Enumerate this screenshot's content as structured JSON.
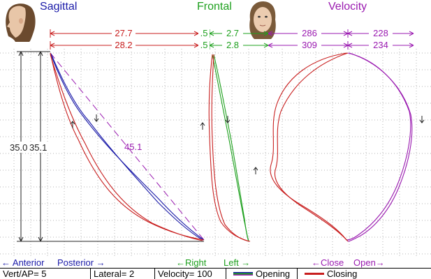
{
  "headers": {
    "sagittal": "Sagittal",
    "frontal": "Frontal",
    "velocity": "Velocity"
  },
  "icons": {
    "left_face": "face-profile-icon",
    "center_face": "face-front-icon"
  },
  "colors": {
    "blue": "#1a1aa8",
    "green": "#1ea01e",
    "purple": "#9a1ab0",
    "red": "#c81e1e",
    "grid": "#b4b4b4",
    "dim": "#222222"
  },
  "measurements": {
    "sagittal_opening": "27.7",
    "sagittal_closing": "28.2",
    "frontal_left_opening": ".5",
    "frontal_right_opening": "2.7",
    "frontal_left_closing": ".5",
    "frontal_right_closing": "2.8",
    "velocity_open_left": "286",
    "velocity_open_right": "228",
    "velocity_close_left": "309",
    "velocity_close_right": "234",
    "vertical_a": "35.0",
    "vertical_b": "35.1",
    "diagonal": "45.1"
  },
  "direction_labels": {
    "anterior": "← Anterior",
    "posterior": "Posterior →",
    "right": "←Right",
    "left": "Left →",
    "close": "←Close",
    "open": "Open→"
  },
  "status": {
    "vert_ap": "Vert/AP= 5",
    "lateral": "Lateral= 2",
    "velocity": "Velocity= 100",
    "opening": "Opening",
    "closing": "Closing"
  }
}
